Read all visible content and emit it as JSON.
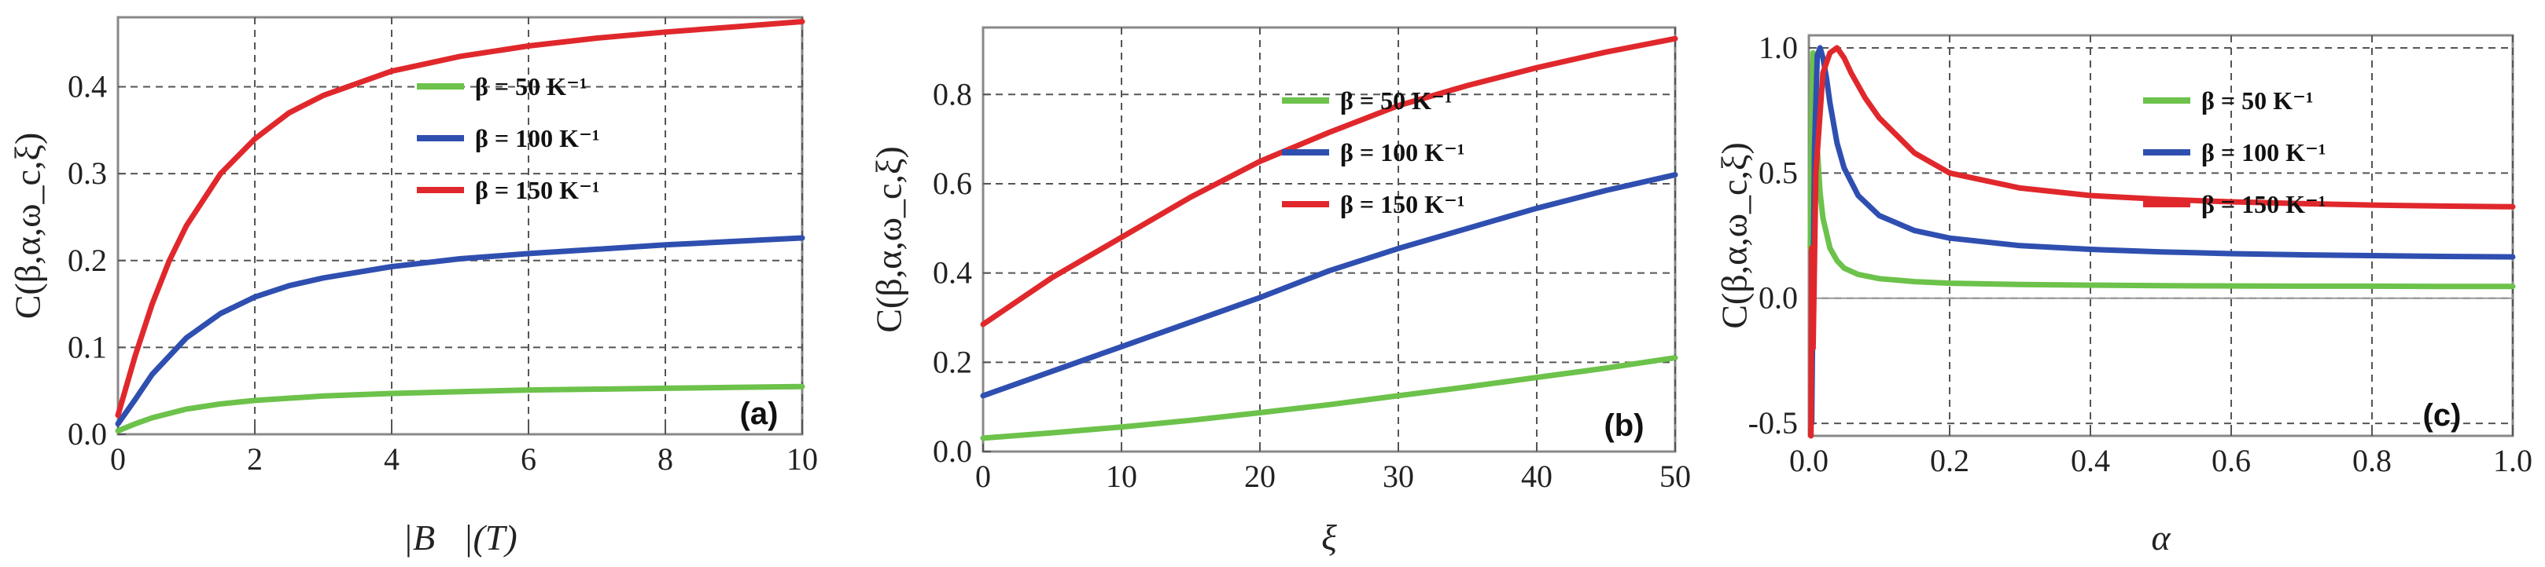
{
  "chart_data": [
    {
      "type": "line",
      "panel_label": "(a)",
      "ylabel": "C(β,α,ω_c,ξ)",
      "xlabel": "|B⃗|(T)",
      "xlim": [
        0,
        10
      ],
      "ylim": [
        0,
        0.48
      ],
      "xticks": [
        0,
        2,
        4,
        6,
        8,
        10
      ],
      "yticks": [
        0.0,
        0.1,
        0.2,
        0.3,
        0.4
      ],
      "ytick_labels": [
        "0.0",
        "0.1",
        "0.2",
        "0.3",
        "0.4"
      ],
      "grid": true,
      "legend_position": "top-center",
      "series": [
        {
          "name": "β = 50 K⁻¹",
          "color": "#6cc24a",
          "x": [
            0,
            0.25,
            0.5,
            1,
            1.5,
            2,
            3,
            4,
            5,
            6,
            7,
            8,
            9,
            10
          ],
          "y": [
            0.004,
            0.012,
            0.019,
            0.029,
            0.035,
            0.039,
            0.044,
            0.047,
            0.049,
            0.051,
            0.052,
            0.053,
            0.054,
            0.055
          ]
        },
        {
          "name": "β = 100 K⁻¹",
          "color": "#2f4fb0",
          "x": [
            0,
            0.25,
            0.5,
            1,
            1.5,
            2,
            2.5,
            3,
            4,
            5,
            6,
            7,
            8,
            9,
            10
          ],
          "y": [
            0.012,
            0.04,
            0.069,
            0.111,
            0.139,
            0.158,
            0.171,
            0.18,
            0.193,
            0.202,
            0.208,
            0.213,
            0.218,
            0.222,
            0.226
          ]
        },
        {
          "name": "β = 150 K⁻¹",
          "color": "#e0282c",
          "x": [
            0,
            0.25,
            0.5,
            0.75,
            1,
            1.5,
            2,
            2.5,
            3,
            4,
            5,
            6,
            7,
            8,
            9,
            10
          ],
          "y": [
            0.022,
            0.09,
            0.15,
            0.2,
            0.24,
            0.3,
            0.34,
            0.37,
            0.39,
            0.418,
            0.435,
            0.447,
            0.456,
            0.463,
            0.469,
            0.475
          ]
        }
      ]
    },
    {
      "type": "line",
      "panel_label": "(b)",
      "ylabel": "C(β,α,ω_c,ξ)",
      "xlabel": "ξ",
      "xlim": [
        0,
        50
      ],
      "ylim": [
        0,
        0.95
      ],
      "xticks": [
        0,
        10,
        20,
        30,
        40,
        50
      ],
      "yticks": [
        0.0,
        0.2,
        0.4,
        0.6,
        0.8
      ],
      "ytick_labels": [
        "0.0",
        "0.2",
        "0.4",
        "0.6",
        "0.8"
      ],
      "grid": true,
      "legend_position": "top-center",
      "series": [
        {
          "name": "β = 50 K⁻¹",
          "color": "#6cc24a",
          "x": [
            0,
            5,
            10,
            15,
            20,
            25,
            30,
            35,
            40,
            45,
            50
          ],
          "y": [
            0.03,
            0.042,
            0.055,
            0.07,
            0.087,
            0.105,
            0.125,
            0.145,
            0.166,
            0.187,
            0.21
          ]
        },
        {
          "name": "β = 100 K⁻¹",
          "color": "#2f4fb0",
          "x": [
            0,
            5,
            10,
            15,
            20,
            25,
            30,
            35,
            40,
            45,
            50
          ],
          "y": [
            0.125,
            0.18,
            0.235,
            0.29,
            0.345,
            0.405,
            0.455,
            0.5,
            0.545,
            0.585,
            0.62
          ]
        },
        {
          "name": "β = 150 K⁻¹",
          "color": "#e0282c",
          "x": [
            0,
            5,
            10,
            15,
            20,
            25,
            30,
            35,
            40,
            45,
            50
          ],
          "y": [
            0.285,
            0.39,
            0.48,
            0.57,
            0.65,
            0.715,
            0.775,
            0.82,
            0.86,
            0.895,
            0.925
          ]
        }
      ]
    },
    {
      "type": "line",
      "panel_label": "(c)",
      "ylabel": "C(β,α,ω_c,ξ)",
      "xlabel": "α",
      "xlim": [
        0,
        1.0
      ],
      "ylim": [
        -0.55,
        1.05
      ],
      "xticks": [
        0.0,
        0.2,
        0.4,
        0.6,
        0.8,
        1.0
      ],
      "xtick_labels": [
        "0.0",
        "0.2",
        "0.4",
        "0.6",
        "0.8",
        "1.0"
      ],
      "yticks": [
        -0.5,
        0.0,
        0.5,
        1.0
      ],
      "ytick_labels": [
        "-0.5",
        "0.0",
        "0.5",
        "1.0"
      ],
      "grid": true,
      "legend_position": "top-right",
      "series": [
        {
          "name": "β = 50 K⁻¹",
          "color": "#6cc24a",
          "x": [
            0.002,
            0.004,
            0.006,
            0.008,
            0.012,
            0.016,
            0.02,
            0.03,
            0.04,
            0.05,
            0.07,
            0.1,
            0.15,
            0.2,
            0.3,
            0.4,
            0.5,
            0.6,
            0.7,
            0.8,
            0.9,
            1.0
          ],
          "y": [
            0.2,
            0.75,
            0.98,
            0.9,
            0.6,
            0.42,
            0.32,
            0.2,
            0.15,
            0.12,
            0.095,
            0.078,
            0.066,
            0.06,
            0.055,
            0.052,
            0.05,
            0.049,
            0.048,
            0.048,
            0.047,
            0.047
          ]
        },
        {
          "name": "β = 100 K⁻¹",
          "color": "#2f4fb0",
          "x": [
            0.004,
            0.008,
            0.012,
            0.016,
            0.02,
            0.025,
            0.03,
            0.04,
            0.05,
            0.07,
            0.1,
            0.15,
            0.2,
            0.3,
            0.4,
            0.5,
            0.6,
            0.7,
            0.8,
            0.9,
            1.0
          ],
          "y": [
            -0.5,
            0.6,
            0.97,
            1.0,
            0.96,
            0.88,
            0.78,
            0.62,
            0.52,
            0.41,
            0.33,
            0.27,
            0.24,
            0.21,
            0.195,
            0.185,
            0.178,
            0.173,
            0.17,
            0.167,
            0.165
          ]
        },
        {
          "name": "β = 150 K⁻¹",
          "color": "#e0282c",
          "x": [
            0.003,
            0.004,
            0.006,
            0.01,
            0.02,
            0.03,
            0.04,
            0.05,
            0.06,
            0.08,
            0.1,
            0.15,
            0.2,
            0.3,
            0.4,
            0.5,
            0.6,
            0.7,
            0.8,
            0.9,
            1.0
          ],
          "y": [
            -0.55,
            0.2,
            -0.2,
            0.5,
            0.9,
            0.98,
            1.0,
            0.96,
            0.9,
            0.8,
            0.72,
            0.58,
            0.5,
            0.44,
            0.41,
            0.395,
            0.385,
            0.378,
            0.372,
            0.368,
            0.365
          ]
        }
      ]
    }
  ]
}
